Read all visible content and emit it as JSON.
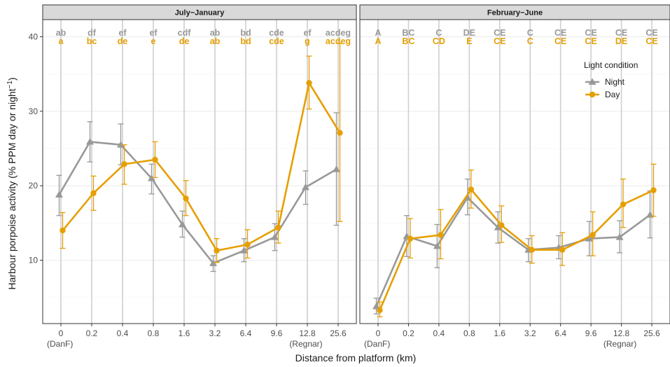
{
  "chart_data": {
    "type": "line",
    "ylabel": "Harbour porpoise activity (% PPM day or night",
    "ylabel_superscript": "−1",
    "ylabel_close": ")",
    "xlabel": "Distance from platform (km)",
    "ylim": [
      1.5,
      42.3
    ],
    "yticks": [
      10,
      20,
      30,
      40
    ],
    "grid": true,
    "categories": [
      "0",
      "0.2",
      "0.4",
      "0.8",
      "1.6",
      "3.2",
      "6.4",
      "9.6",
      "12.8",
      "25.6"
    ],
    "category_sublabels": {
      "0": "(DanF)",
      "12.8": "(Regnar)"
    },
    "legend": {
      "title": "Light condition",
      "placement": "top-right",
      "entries": [
        {
          "name": "Night",
          "color": "#999999",
          "marker": "triangle"
        },
        {
          "name": "Day",
          "color": "#E69F00",
          "marker": "circle"
        }
      ]
    },
    "panels": [
      {
        "title": "July−January",
        "series": [
          {
            "name": "Night",
            "values": [
              18.8,
              25.9,
              25.5,
              21.0,
              14.8,
              9.6,
              11.3,
              13.1,
              19.8,
              22.2
            ],
            "lower": [
              16.0,
              23.2,
              22.8,
              18.9,
              13.1,
              8.5,
              9.8,
              11.3,
              17.5,
              14.7
            ],
            "upper": [
              21.4,
              28.6,
              28.3,
              22.9,
              16.6,
              10.6,
              12.9,
              14.9,
              22.0,
              29.8
            ]
          },
          {
            "name": "Day",
            "values": [
              14.0,
              19.0,
              22.9,
              23.5,
              18.3,
              11.3,
              12.1,
              14.4,
              33.8,
              27.1
            ],
            "lower": [
              11.6,
              16.7,
              20.2,
              21.1,
              16.0,
              9.7,
              10.3,
              12.3,
              30.3,
              15.2
            ],
            "upper": [
              16.4,
              21.3,
              25.5,
              25.9,
              20.7,
              12.9,
              14.1,
              16.6,
              37.4,
              39.1
            ]
          }
        ],
        "letters_night": [
          "ab",
          "df",
          "ef",
          "ef",
          "cdf",
          "ab",
          "bd",
          "cde",
          "ef",
          "acdeg"
        ],
        "letters_day": [
          "a",
          "bc",
          "de",
          "e",
          "de",
          "ab",
          "bd",
          "cde",
          "g",
          "acdeg"
        ]
      },
      {
        "title": "February−June",
        "series": [
          {
            "name": "Night",
            "values": [
              3.8,
              13.2,
              11.9,
              18.4,
              14.4,
              11.4,
              11.7,
              12.9,
              13.1,
              16.1
            ],
            "lower": [
              2.8,
              10.5,
              9.0,
              16.1,
              12.3,
              9.8,
              10.2,
              10.6,
              11.0,
              13.0
            ],
            "upper": [
              4.9,
              16.0,
              14.8,
              20.9,
              16.5,
              12.9,
              13.3,
              15.2,
              15.3,
              19.3
            ]
          },
          {
            "name": "Day",
            "values": [
              3.3,
              12.9,
              13.4,
              19.5,
              14.7,
              11.4,
              11.4,
              13.4,
              17.5,
              19.4
            ],
            "lower": [
              2.4,
              10.3,
              10.2,
              17.0,
              12.4,
              9.6,
              9.3,
              10.6,
              14.4,
              15.9
            ],
            "upper": [
              4.4,
              15.6,
              16.8,
              22.1,
              17.3,
              13.3,
              13.7,
              16.5,
              20.9,
              22.9
            ]
          }
        ],
        "letters_night": [
          "A",
          "BC",
          "C",
          "DE",
          "CE",
          "C",
          "CE",
          "CE",
          "CE",
          "CE"
        ],
        "letters_day": [
          "A",
          "BC",
          "CD",
          "E",
          "CE",
          "C",
          "CE",
          "CE",
          "DE",
          "CE"
        ]
      }
    ]
  }
}
